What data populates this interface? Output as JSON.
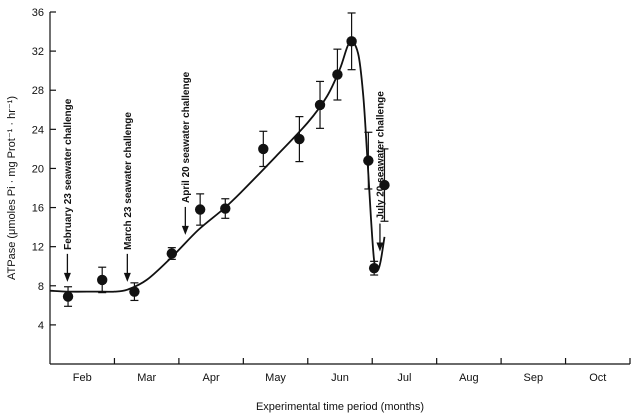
{
  "chart_data": {
    "type": "scatter",
    "title": "",
    "xlabel": "Experimental time period (months)",
    "ylabel": "ATPase (μmoles Pi · mg Prot⁻¹ · hr⁻¹)",
    "categories": [
      "Feb",
      "Mar",
      "Apr",
      "May",
      "Jun",
      "Jul",
      "Aug",
      "Sep",
      "Oct"
    ],
    "xlim": [
      0,
      9
    ],
    "ylim": [
      0,
      36
    ],
    "yticks": [
      4,
      8,
      12,
      16,
      20,
      24,
      28,
      32,
      36
    ],
    "grid": false,
    "series": [
      {
        "points": [
          {
            "x": 0.28,
            "y": 6.9,
            "err": 1.0
          },
          {
            "x": 0.81,
            "y": 8.6,
            "err": 1.3
          },
          {
            "x": 1.31,
            "y": 7.4,
            "err": 0.9
          },
          {
            "x": 1.89,
            "y": 11.3,
            "err": 0.6
          },
          {
            "x": 2.33,
            "y": 15.8,
            "err": 1.6
          },
          {
            "x": 2.72,
            "y": 15.9,
            "err": 1.0
          },
          {
            "x": 3.31,
            "y": 22.0,
            "err": 1.8
          },
          {
            "x": 3.87,
            "y": 23.0,
            "err": 2.3
          },
          {
            "x": 4.19,
            "y": 26.5,
            "err": 2.4
          },
          {
            "x": 4.46,
            "y": 29.6,
            "err": 2.6
          },
          {
            "x": 4.68,
            "y": 33.0,
            "err": 2.9
          },
          {
            "x": 4.94,
            "y": 20.8,
            "err": 2.9
          },
          {
            "x": 5.03,
            "y": 9.8,
            "err": 0.7
          },
          {
            "x": 5.19,
            "y": 18.3,
            "err": 3.7
          }
        ],
        "fit_curve": [
          [
            0.0,
            7.5
          ],
          [
            0.3,
            7.4
          ],
          [
            0.7,
            7.4
          ],
          [
            1.0,
            7.4
          ],
          [
            1.2,
            7.6
          ],
          [
            1.5,
            8.6
          ],
          [
            1.9,
            11.0
          ],
          [
            2.3,
            13.7
          ],
          [
            2.7,
            15.9
          ],
          [
            3.0,
            17.8
          ],
          [
            3.5,
            21.2
          ],
          [
            4.0,
            24.7
          ],
          [
            4.3,
            27.4
          ],
          [
            4.5,
            30.2
          ],
          [
            4.65,
            32.9
          ],
          [
            4.78,
            31.8
          ],
          [
            4.86,
            27.5
          ],
          [
            4.92,
            21.5
          ],
          [
            4.98,
            15.0
          ],
          [
            5.03,
            10.5
          ],
          [
            5.08,
            9.6
          ],
          [
            5.13,
            10.5
          ],
          [
            5.19,
            13.0
          ]
        ]
      }
    ],
    "annotations": [
      {
        "text": "February 23 seawater challenge",
        "x": 0.27,
        "y_arrow": 8.4
      },
      {
        "text": "March 23 seawater challenge",
        "x": 1.2,
        "y_arrow": 8.4
      },
      {
        "text": "April 20 seawater challenge",
        "x": 2.1,
        "y_arrow": 13.2
      },
      {
        "text": "July 20 seawater challenge",
        "x": 5.12,
        "y_arrow": 11.5
      }
    ]
  }
}
